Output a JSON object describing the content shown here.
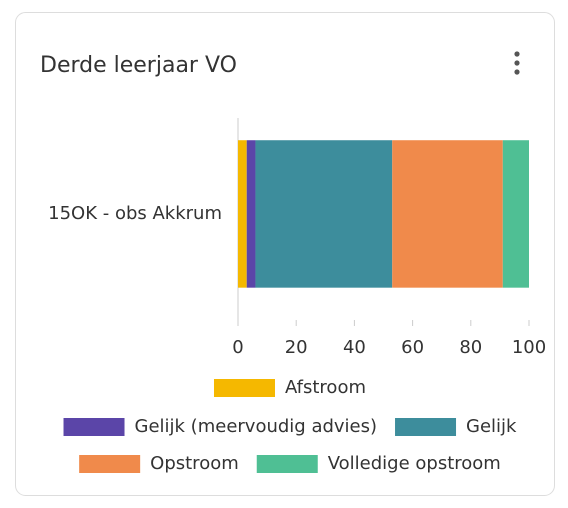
{
  "chart_data": {
    "type": "bar",
    "orientation": "horizontal",
    "stacked": true,
    "title": "Derde leerjaar VO",
    "categories": [
      "15OK - obs Akkrum"
    ],
    "series": [
      {
        "name": "Afstroom",
        "color": "#f5b800",
        "values": [
          3
        ]
      },
      {
        "name": "Gelijk (meervoudig advies)",
        "color": "#5b45a8",
        "values": [
          3
        ]
      },
      {
        "name": "Gelijk",
        "color": "#3d8d9c",
        "values": [
          47
        ]
      },
      {
        "name": "Opstroom",
        "color": "#f08a4b",
        "values": [
          38
        ]
      },
      {
        "name": "Volledige opstroom",
        "color": "#4fbf94",
        "values": [
          9
        ]
      }
    ],
    "xlim": [
      0,
      100
    ],
    "xticks": [
      0,
      20,
      40,
      60,
      80,
      100
    ],
    "legend": "bottom"
  }
}
